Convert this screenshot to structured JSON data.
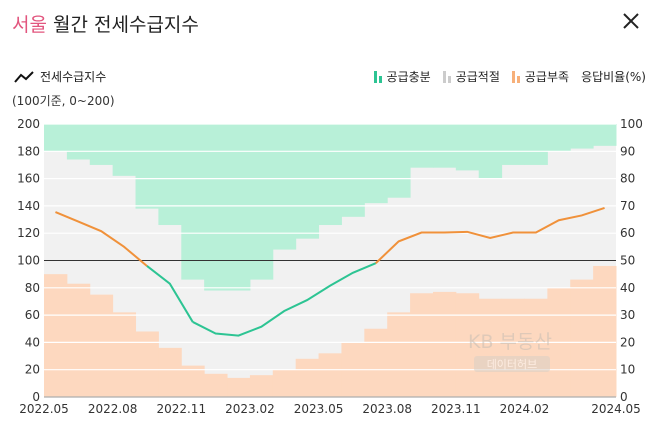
{
  "header": {
    "title_city": "서울",
    "title_rest": "월간 전세수급지수"
  },
  "legend": {
    "line_label": "전세수급지수",
    "subtitle": "(100기준, 0~200)",
    "supply_ample": "공급충분",
    "supply_adequate": "공급적절",
    "supply_short": "공급부족",
    "response_ratio": "응답비율(%)"
  },
  "watermark": {
    "line1": "KB 부동산",
    "line2": "데이터허브"
  },
  "colors": {
    "title_accent": "#e2557e",
    "line": "#2dc493",
    "line_later": "#f0913a",
    "ample": "#b8f0d8",
    "adequate": "#f1f1f1",
    "short": "#fdd8bf"
  },
  "chart_data": {
    "type": "line",
    "x": [
      "2022.05",
      "2022.06",
      "2022.07",
      "2022.08",
      "2022.09",
      "2022.10",
      "2022.11",
      "2022.12",
      "2023.01",
      "2023.02",
      "2023.03",
      "2023.04",
      "2023.05",
      "2023.06",
      "2023.07",
      "2023.08",
      "2023.09",
      "2023.10",
      "2023.11",
      "2023.12",
      "2024.01",
      "2024.02",
      "2024.03",
      "2024.04",
      "2024.05"
    ],
    "x_ticks": [
      "2022.05",
      "2022.08",
      "2022.11",
      "2023.02",
      "2023.05",
      "2023.08",
      "2023.11",
      "2024.02",
      "2024.05"
    ],
    "series": [
      {
        "name": "전세수급지수",
        "values": [
          135.5,
          128.5,
          121.5,
          110,
          96,
          83,
          55,
          46.5,
          45,
          51.5,
          63,
          71,
          81.5,
          91,
          98,
          114,
          120.5,
          120.5,
          121,
          116.5,
          120.5,
          120.5,
          129.5,
          133,
          138.5
        ]
      },
      {
        "name": "공급충분",
        "values": [
          10,
          13,
          15,
          19,
          31,
          37,
          57,
          61,
          61,
          57,
          46,
          42,
          37,
          34,
          29,
          27,
          16,
          16,
          17,
          20,
          15,
          15,
          10,
          9,
          8
        ]
      },
      {
        "name": "공급부족",
        "values": [
          45,
          41.5,
          37.5,
          31,
          24,
          18,
          11.5,
          8.5,
          7,
          8,
          10,
          14,
          16,
          20,
          25,
          31,
          38,
          38.5,
          38,
          36,
          36,
          36,
          40,
          43,
          48
        ]
      }
    ],
    "ylim_left": [
      0,
      200
    ],
    "ylim_right": [
      0,
      100
    ],
    "yticks_left": [
      0,
      20,
      40,
      60,
      80,
      100,
      120,
      140,
      160,
      180,
      200
    ],
    "yticks_right": [
      0,
      10,
      20,
      30,
      40,
      50,
      60,
      70,
      80,
      90,
      100
    ],
    "reference_line": 100,
    "grid": true
  }
}
